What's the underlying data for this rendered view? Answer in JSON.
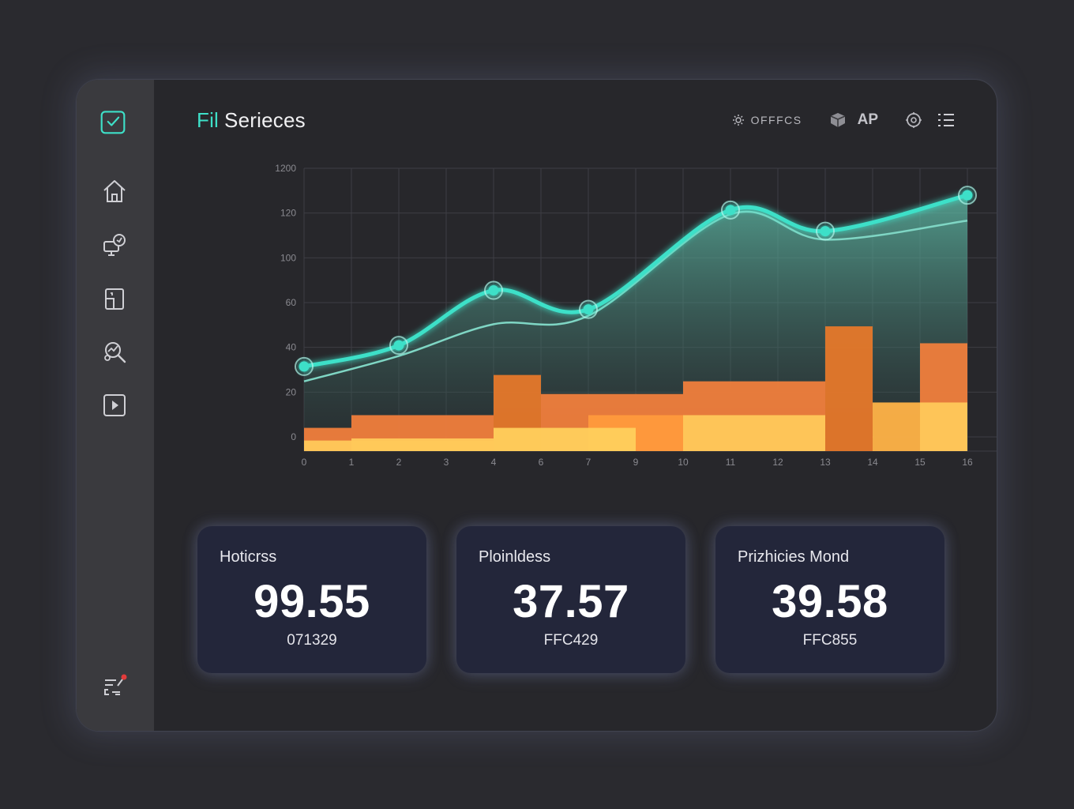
{
  "app": {
    "title_accent": "Fil",
    "title_rest": "Serieces"
  },
  "toolbar": {
    "offices_label": "OFFFCS",
    "ap_label": "AP"
  },
  "sidebar": {
    "items": [
      {
        "icon": "checkbox-icon"
      },
      {
        "icon": "home-icon"
      },
      {
        "icon": "monitor-chat-icon"
      },
      {
        "icon": "document-icon"
      },
      {
        "icon": "search-analytics-icon"
      },
      {
        "icon": "play-icon"
      },
      {
        "icon": "settings-list-icon"
      }
    ]
  },
  "colors": {
    "accent": "#3ee0c8",
    "bar_orange": "#f07e3c",
    "bar_dark_orange": "#e6782a",
    "bar_yellow": "#ffc95a",
    "card_bg": "#23263a"
  },
  "chart_data": {
    "type": "line",
    "y_tick_labels": [
      "1200",
      "120",
      "100",
      "60",
      "40",
      "20",
      "0"
    ],
    "x_tick_labels": [
      "0",
      "1",
      "2",
      "3",
      "4",
      "6",
      "7",
      "9",
      "10",
      "11",
      "12",
      "13",
      "14",
      "15",
      "16"
    ],
    "grid": true,
    "series": [
      {
        "kind": "line-markers",
        "color": "#3ee0c8",
        "points": [
          {
            "x": "0",
            "y": 40
          },
          {
            "x": "2",
            "y": 50
          },
          {
            "x": "4",
            "y": 76
          },
          {
            "x": "7",
            "y": 67
          },
          {
            "x": "11",
            "y": 114
          },
          {
            "x": "13",
            "y": 104
          },
          {
            "x": "16",
            "y": 121
          }
        ]
      },
      {
        "kind": "area",
        "color": "#7fd6c4",
        "points": [
          {
            "x": "0",
            "y": 33
          },
          {
            "x": "2",
            "y": 45
          },
          {
            "x": "4",
            "y": 60
          },
          {
            "x": "7",
            "y": 64
          },
          {
            "x": "11",
            "y": 112
          },
          {
            "x": "13",
            "y": 100
          },
          {
            "x": "16",
            "y": 109
          }
        ]
      }
    ],
    "bars": [
      {
        "from": "0",
        "to": "1",
        "value": 11,
        "color": "#f07e3c"
      },
      {
        "from": "1",
        "to": "4",
        "value": 17,
        "color": "#f07e3c"
      },
      {
        "from": "4",
        "to": "6",
        "value": 36,
        "color": "#e6782a"
      },
      {
        "from": "6",
        "to": "10",
        "value": 27,
        "color": "#f07e3c"
      },
      {
        "from": "7",
        "to": "10",
        "value": 17,
        "color": "#ff9a3c"
      },
      {
        "from": "10",
        "to": "13",
        "value": 33,
        "color": "#f07e3c"
      },
      {
        "from": "10",
        "to": "13",
        "value": 17,
        "color": "#ffc95a"
      },
      {
        "from": "13",
        "to": "14",
        "value": 59,
        "color": "#e6782a"
      },
      {
        "from": "14",
        "to": "15",
        "value": 23,
        "color": "#ffb347"
      },
      {
        "from": "15",
        "to": "16",
        "value": 51,
        "color": "#f07e3c"
      },
      {
        "from": "15",
        "to": "16",
        "value": 23,
        "color": "#ffc95a"
      },
      {
        "from": "1",
        "to": "4",
        "value": 6,
        "color": "#ffc95a"
      },
      {
        "from": "4",
        "to": "9",
        "value": 11,
        "color": "#ffcf5c"
      },
      {
        "from": "0",
        "to": "4",
        "value": 5,
        "color": "#ffc95a"
      }
    ]
  },
  "cards": [
    {
      "label": "Hoticrss",
      "value": "99.55",
      "code": "071329"
    },
    {
      "label": "Ploinldess",
      "value": "37.57",
      "code": "FFC429"
    },
    {
      "label": "Prizhicies Mond",
      "value": "39.58",
      "code": "FFC855"
    }
  ]
}
